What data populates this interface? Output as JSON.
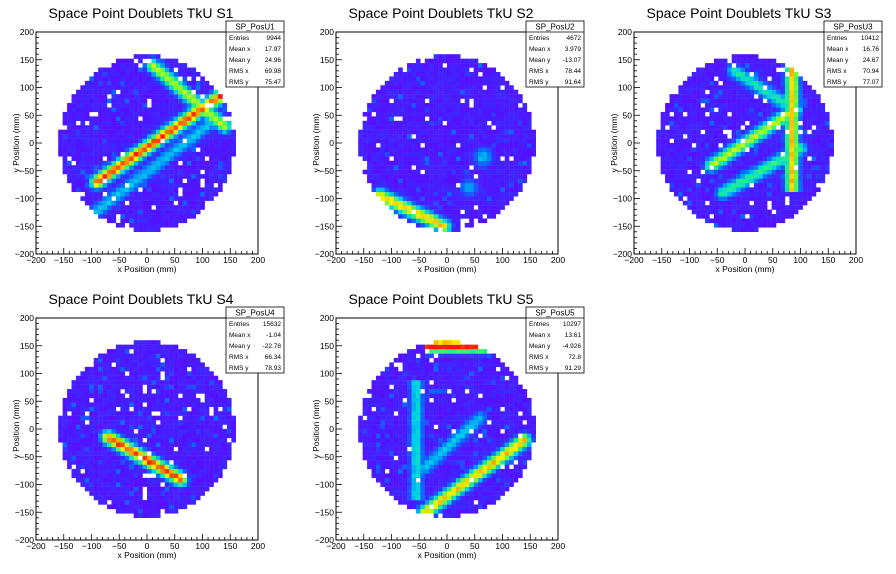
{
  "chart_data": [
    {
      "type": "heatmap",
      "title": "Space Point Doublets TkU S1",
      "xlabel": "x Position (mm)",
      "ylabel": "y Position (mm)",
      "xlim": [
        -200,
        200
      ],
      "ylim": [
        -200,
        200
      ],
      "xticks": [
        -200,
        -150,
        -100,
        -50,
        0,
        50,
        100,
        150,
        200
      ],
      "yticks": [
        -200,
        -150,
        -100,
        -50,
        0,
        50,
        100,
        150,
        200
      ],
      "colormap": "rainbow",
      "stats": {
        "name": "SP_PosU1",
        "rows": [
          {
            "label": "Entries",
            "value": "9944"
          },
          {
            "label": "Mean x",
            "value": "17.97"
          },
          {
            "label": "Mean y",
            "value": "24.96"
          },
          {
            "label": "RMS x",
            "value": "69.98"
          },
          {
            "label": "RMS y",
            "value": "75.47"
          }
        ]
      },
      "features": [
        {
          "kind": "band",
          "from": [
            -90,
            -70
          ],
          "to": [
            140,
            90
          ],
          "level": 0.95
        },
        {
          "kind": "band",
          "from": [
            10,
            140
          ],
          "to": [
            140,
            30
          ],
          "level": 0.75
        },
        {
          "kind": "band",
          "from": [
            -100,
            -130
          ],
          "to": [
            120,
            40
          ],
          "level": 0.45
        }
      ]
    },
    {
      "type": "heatmap",
      "title": "Space Point Doublets TkU S2",
      "xlabel": "x Position (mm)",
      "ylabel": "y Position (mm)",
      "xlim": [
        -200,
        200
      ],
      "ylim": [
        -200,
        200
      ],
      "xticks": [
        -200,
        -150,
        -100,
        -50,
        0,
        50,
        100,
        150,
        200
      ],
      "yticks": [
        -200,
        -150,
        -100,
        -50,
        0,
        50,
        100,
        150,
        200
      ],
      "colormap": "rainbow",
      "stats": {
        "name": "SP_PosU2",
        "rows": [
          {
            "label": "Entries",
            "value": "4672"
          },
          {
            "label": "Mean x",
            "value": "3.979"
          },
          {
            "label": "Mean y",
            "value": "-13.07"
          },
          {
            "label": "RMS x",
            "value": "78.44"
          },
          {
            "label": "RMS y",
            "value": "91.64"
          }
        ]
      },
      "features": [
        {
          "kind": "band",
          "from": [
            -120,
            -95
          ],
          "to": [
            -5,
            -150
          ],
          "level": 0.85
        },
        {
          "kind": "spot",
          "at": [
            65,
            -25
          ],
          "level": 0.45
        },
        {
          "kind": "spot",
          "at": [
            40,
            -80
          ],
          "level": 0.4
        }
      ]
    },
    {
      "type": "heatmap",
      "title": "Space Point Doublets TkU S3",
      "xlabel": "x Position (mm)",
      "ylabel": "y Position (mm)",
      "xlim": [
        -200,
        200
      ],
      "ylim": [
        -200,
        200
      ],
      "xticks": [
        -200,
        -150,
        -100,
        -50,
        0,
        50,
        100,
        150,
        200
      ],
      "yticks": [
        -200,
        -150,
        -100,
        -50,
        0,
        50,
        100,
        150,
        200
      ],
      "colormap": "rainbow",
      "stats": {
        "name": "SP_PosU3",
        "rows": [
          {
            "label": "Entries",
            "value": "10412"
          },
          {
            "label": "Mean x",
            "value": "16.76"
          },
          {
            "label": "Mean y",
            "value": "24.67"
          },
          {
            "label": "RMS x",
            "value": "70.94"
          },
          {
            "label": "RMS y",
            "value": "77.07"
          }
        ]
      },
      "features": [
        {
          "kind": "vline",
          "x": 85,
          "y": [
            -90,
            150
          ],
          "level": 0.85
        },
        {
          "kind": "band",
          "from": [
            -60,
            -40
          ],
          "to": [
            90,
            60
          ],
          "level": 0.75
        },
        {
          "kind": "band",
          "from": [
            -40,
            -90
          ],
          "to": [
            100,
            -10
          ],
          "level": 0.6
        },
        {
          "kind": "band",
          "from": [
            -20,
            130
          ],
          "to": [
            90,
            60
          ],
          "level": 0.55
        }
      ]
    },
    {
      "type": "heatmap",
      "title": "Space Point Doublets TkU S4",
      "xlabel": "x Position (mm)",
      "ylabel": "y Position (mm)",
      "xlim": [
        -200,
        200
      ],
      "ylim": [
        -200,
        200
      ],
      "xticks": [
        -200,
        -150,
        -100,
        -50,
        0,
        50,
        100,
        150,
        200
      ],
      "yticks": [
        -200,
        -150,
        -100,
        -50,
        0,
        50,
        100,
        150,
        200
      ],
      "colormap": "rainbow",
      "stats": {
        "name": "SP_PosU4",
        "rows": [
          {
            "label": "Entries",
            "value": "15632"
          },
          {
            "label": "Mean x",
            "value": "-1.04"
          },
          {
            "label": "Mean y",
            "value": "-22.78"
          },
          {
            "label": "RMS x",
            "value": "66.34"
          },
          {
            "label": "RMS y",
            "value": "78.93"
          }
        ]
      },
      "features": [
        {
          "kind": "band",
          "from": [
            -70,
            -15
          ],
          "to": [
            60,
            -90
          ],
          "level": 0.95
        }
      ]
    },
    {
      "type": "heatmap",
      "title": "Space Point Doublets TkU S5",
      "xlabel": "x Position (mm)",
      "ylabel": "y Position (mm)",
      "xlim": [
        -200,
        200
      ],
      "ylim": [
        -200,
        200
      ],
      "xticks": [
        -200,
        -150,
        -100,
        -50,
        0,
        50,
        100,
        150,
        200
      ],
      "yticks": [
        -200,
        -150,
        -100,
        -50,
        0,
        50,
        100,
        150,
        200
      ],
      "colormap": "rainbow",
      "stats": {
        "name": "SP_PosU5",
        "rows": [
          {
            "label": "Entries",
            "value": "10297"
          },
          {
            "label": "Mean x",
            "value": "13.61"
          },
          {
            "label": "Mean y",
            "value": "-4.926"
          },
          {
            "label": "RMS x",
            "value": "72.8"
          },
          {
            "label": "RMS y",
            "value": "91.29"
          }
        ]
      },
      "features": [
        {
          "kind": "band",
          "from": [
            -40,
            -150
          ],
          "to": [
            140,
            -20
          ],
          "level": 0.85
        },
        {
          "kind": "hline",
          "y": 150,
          "x": [
            -40,
            70
          ],
          "level": 1.0
        },
        {
          "kind": "vline",
          "x": -55,
          "y": [
            -130,
            90
          ],
          "level": 0.5
        },
        {
          "kind": "band",
          "from": [
            -40,
            -70
          ],
          "to": [
            60,
            20
          ],
          "level": 0.45
        }
      ]
    }
  ]
}
